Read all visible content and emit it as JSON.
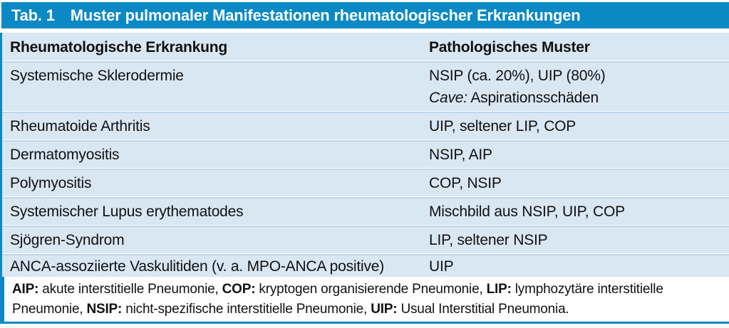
{
  "header": {
    "label": "Tab. 1",
    "title": "Muster pulmonaler Manifestationen rheumatologischer Erkrankungen"
  },
  "columns": [
    "Rheumatologische Erkrankung",
    "Pathologisches Muster"
  ],
  "rows": [
    {
      "disease": "Systemische Sklerodermie",
      "pattern": [
        [
          {
            "text": "NSIP (ca. 20%), UIP (80%)"
          }
        ],
        [
          {
            "text": "Cave:",
            "italic": true
          },
          {
            "text": " Aspirationsschäden"
          }
        ]
      ]
    },
    {
      "disease": "Rheumatoide Arthritis",
      "pattern": [
        [
          {
            "text": "UIP, seltener LIP, COP"
          }
        ]
      ]
    },
    {
      "disease": "Dermatomyositis",
      "pattern": [
        [
          {
            "text": "NSIP, AIP"
          }
        ]
      ]
    },
    {
      "disease": "Polymyositis",
      "pattern": [
        [
          {
            "text": "COP, NSIP"
          }
        ]
      ]
    },
    {
      "disease": "Systemischer Lupus erythematodes",
      "pattern": [
        [
          {
            "text": "Mischbild aus NSIP, UIP, COP"
          }
        ]
      ]
    },
    {
      "disease": "Sjögren-Syndrom",
      "pattern": [
        [
          {
            "text": "LIP, seltener NSIP"
          }
        ]
      ]
    },
    {
      "disease": "ANCA-assoziierte Vaskulitiden (v. a. MPO-ANCA positive)",
      "pattern": [
        [
          {
            "text": "UIP"
          }
        ]
      ]
    }
  ],
  "footnote_segments": [
    {
      "text": "AIP:",
      "bold": true
    },
    {
      "text": " akute interstitielle Pneumonie, "
    },
    {
      "text": "COP:",
      "bold": true
    },
    {
      "text": " kryptogen organisierende Pneumonie, "
    },
    {
      "text": "LIP:",
      "bold": true
    },
    {
      "text": " lymphozytäre interstitielle Pneumonie, "
    },
    {
      "text": "NSIP:",
      "bold": true
    },
    {
      "text": " nicht-spezifische interstitielle Pneumonie, "
    },
    {
      "text": "UIP:",
      "bold": true
    },
    {
      "text": " Usual Interstitial Pneumonia."
    }
  ],
  "colors": {
    "band_blue": "#0b89c5",
    "row_blue": "#d9e7f3",
    "separator_blue": "#bdd6ea",
    "text": "#111111",
    "title_text": "#ffffff"
  }
}
